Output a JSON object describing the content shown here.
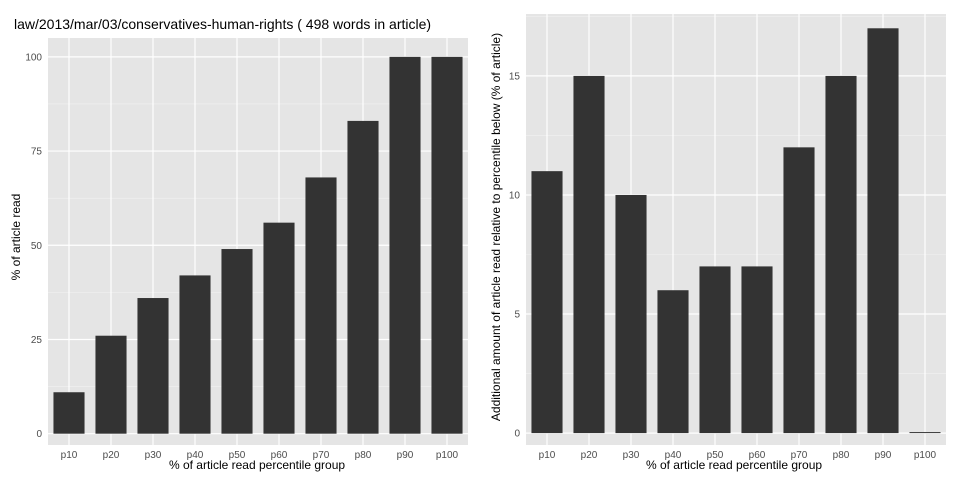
{
  "chart_data": [
    {
      "type": "bar",
      "title": "law/2013/mar/03/conservatives-human-rights ( 498 words in article)",
      "xlabel": "% of article read percentile group",
      "ylabel": "% of article read",
      "categories": [
        "p10",
        "p20",
        "p30",
        "p40",
        "p50",
        "p60",
        "p70",
        "p80",
        "p90",
        "p100"
      ],
      "values": [
        11,
        26,
        36,
        42,
        49,
        56,
        68,
        83,
        100,
        100
      ],
      "ylim": [
        -3,
        105
      ],
      "yticks": [
        0,
        25,
        50,
        75,
        100
      ],
      "grid": true,
      "bar_color": "#333333",
      "panel_color": "#e5e5e5"
    },
    {
      "type": "bar",
      "title": "",
      "xlabel": "% of article read percentile group",
      "ylabel": "Additional amount of article read relative to percentile below (% of article)",
      "categories": [
        "p10",
        "p20",
        "p30",
        "p40",
        "p50",
        "p60",
        "p70",
        "p80",
        "p90",
        "p100"
      ],
      "values": [
        11,
        15,
        10,
        6,
        7,
        7,
        12,
        15,
        17,
        0
      ],
      "ylim": [
        -0.5,
        17.6
      ],
      "yticks": [
        0,
        5,
        10,
        15
      ],
      "grid": true,
      "bar_color": "#333333",
      "panel_color": "#e5e5e5"
    }
  ]
}
